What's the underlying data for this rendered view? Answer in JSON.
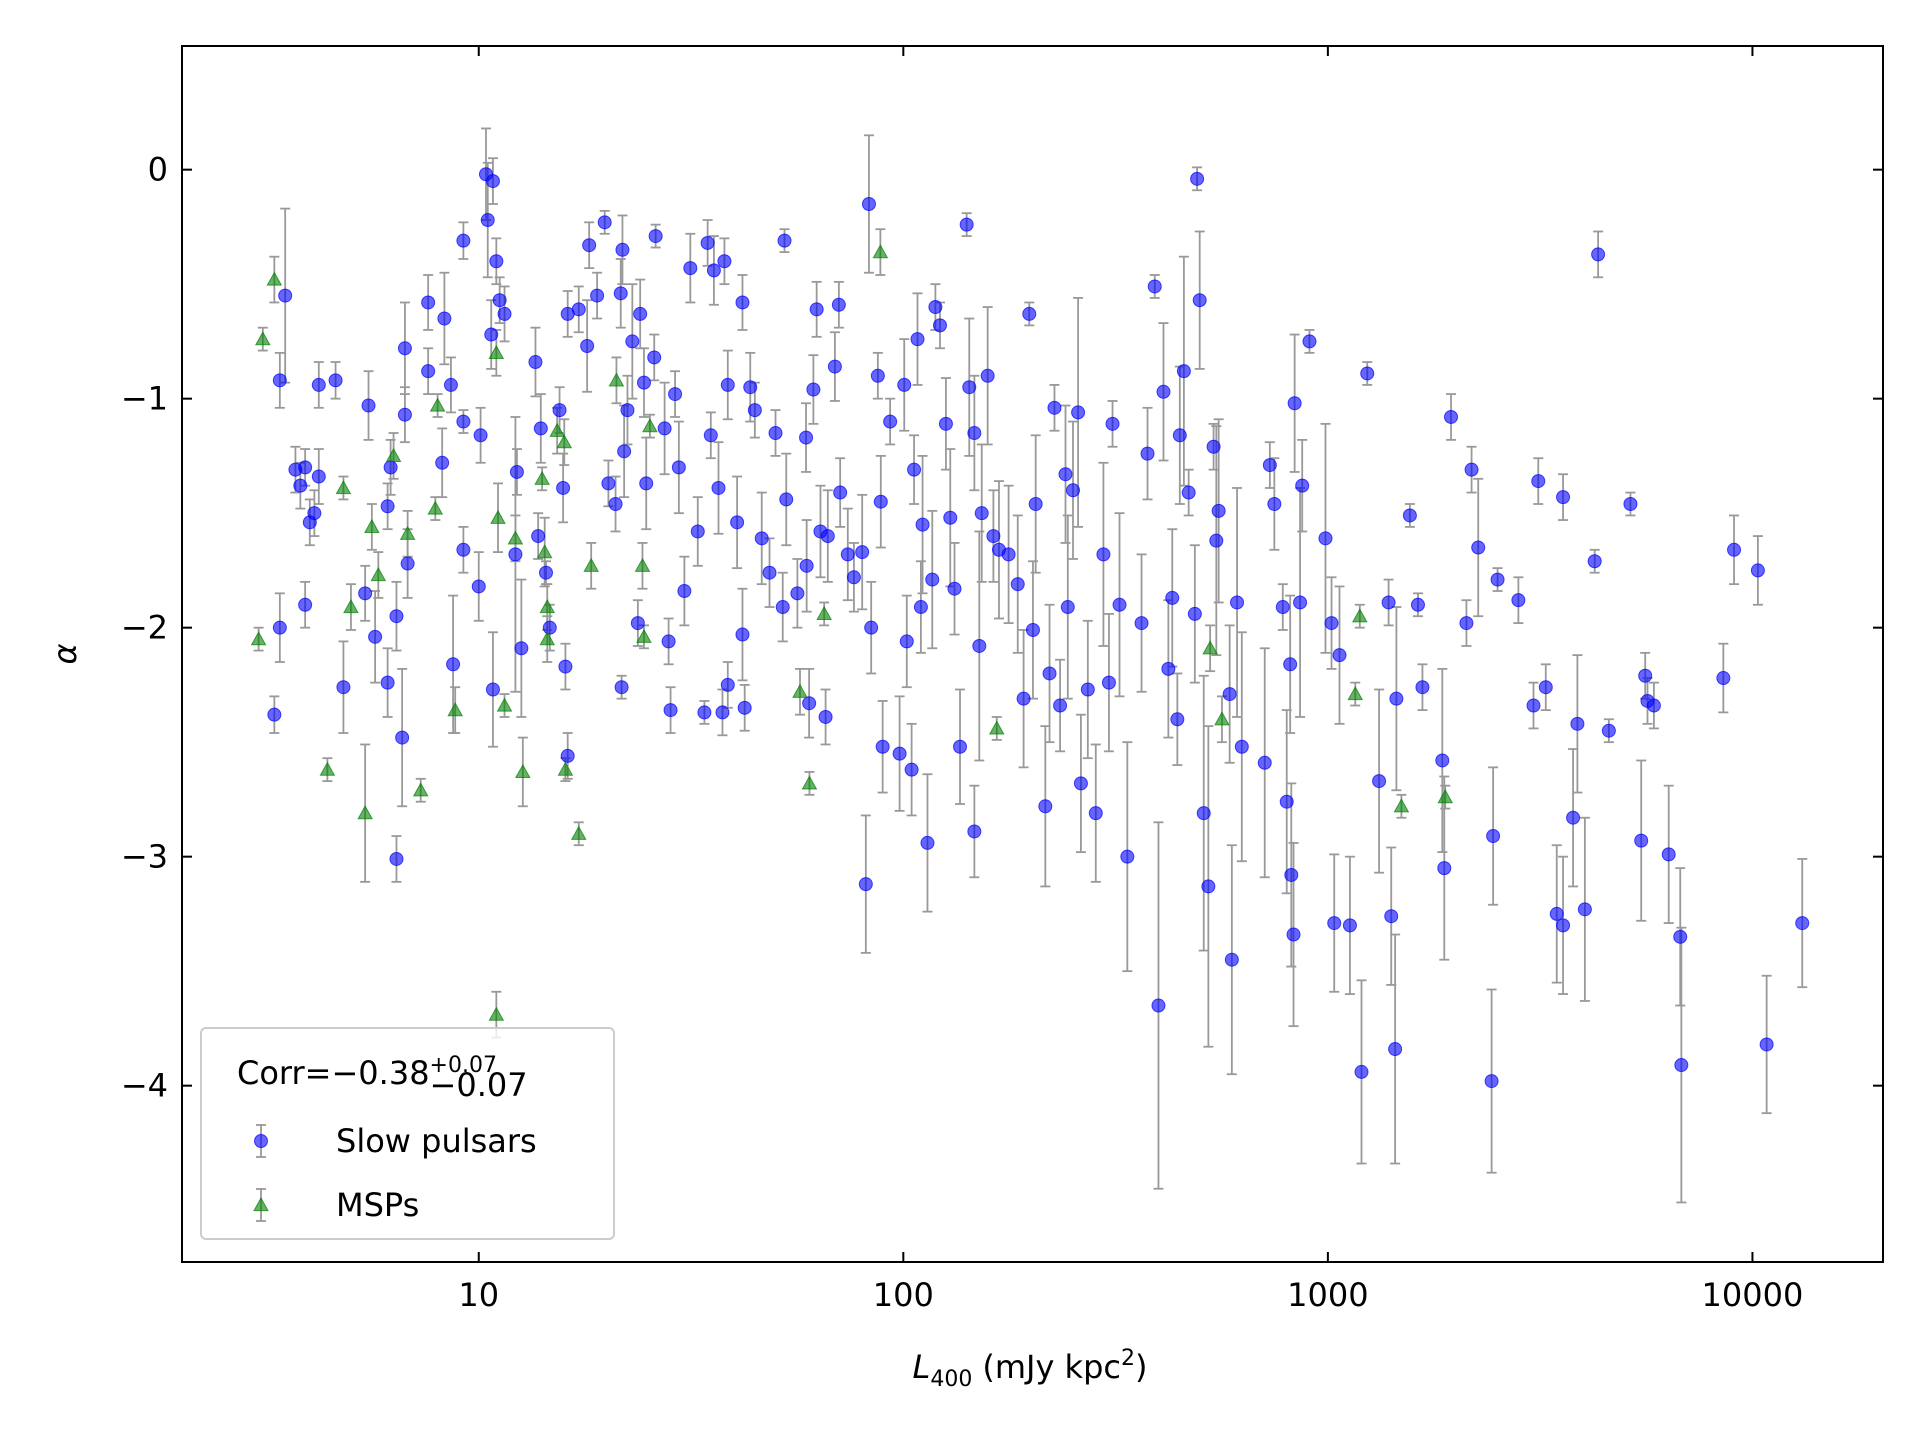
{
  "chart_data": {
    "type": "scatter",
    "xlabel": {
      "symbol": "L",
      "subscript": "400",
      "unit": "(mJy kpc",
      "superscript": "2",
      "close": ")"
    },
    "ylabel": "α",
    "xscale": "log",
    "xlim": [
      2.0,
      20300
    ],
    "ylim": [
      -4.77,
      0.54
    ],
    "xticks": [
      10,
      100,
      1000,
      10000
    ],
    "yticks": [
      {
        "value": 0,
        "label": "0"
      },
      {
        "value": -1,
        "label": "−1"
      },
      {
        "value": -2,
        "label": "−2"
      },
      {
        "value": -3,
        "label": "−3"
      },
      {
        "value": -4,
        "label": "−4"
      }
    ],
    "grid": false,
    "legend": "lower left",
    "legend_title": {
      "text": "Corr=−0.38",
      "upper": "+0.07",
      "lower": "−0.07"
    },
    "errorbar_color": "#999999",
    "series": [
      {
        "name": "Slow pulsars",
        "color": "#0000ff",
        "marker": "circle",
        "x": [
          3.3,
          3.4,
          3.5,
          3.4,
          3.7,
          3.8,
          3.9,
          4.0,
          4.1,
          4.2,
          4.2,
          3.9,
          4.6,
          4.8,
          5.4,
          5.5,
          5.7,
          6.1,
          6.1,
          6.2,
          6.4,
          6.4,
          6.6,
          6.7,
          6.7,
          6.8,
          7.6,
          7.6,
          8.2,
          8.3,
          8.6,
          8.7,
          9.2,
          9.2,
          9.2,
          10.0,
          10.1,
          10.4,
          10.5,
          10.8,
          10.7,
          11.0,
          11.2,
          11.5,
          10.8,
          12.2,
          12.3,
          12.6,
          13.6,
          14.0,
          13.8,
          14.4,
          14.7,
          15.5,
          15.8,
          16.0,
          16.2,
          16.2,
          17.2,
          18.0,
          18.2,
          19.0,
          19.8,
          20.2,
          21.0,
          21.6,
          21.7,
          21.8,
          22.0,
          22.4,
          23.0,
          23.7,
          24.0,
          24.5,
          24.8,
          25.9,
          26.1,
          27.4,
          28.0,
          28.3,
          29.0,
          29.6,
          30.5,
          31.5,
          32.8,
          34.0,
          34.6,
          35.2,
          35.8,
          36.7,
          37.5,
          37.9,
          38.6,
          38.6,
          40.6,
          41.8,
          41.8,
          42.3,
          43.6,
          44.7,
          46.4,
          48.4,
          50.0,
          52.0,
          52.5,
          53.0,
          56.3,
          59.0,
          59.2,
          60.0,
          61.4,
          62.5,
          63.8,
          65.6,
          66.4,
          69.0,
          70.5,
          71.0,
          74.0,
          76.5,
          80,
          81.6,
          83,
          84,
          87.1,
          88.5,
          89.4,
          93.1,
          98,
          100.5,
          101.9,
          104.6,
          106,
          108,
          110,
          111,
          114,
          117,
          119,
          122,
          126,
          129,
          132,
          136,
          141,
          143,
          147,
          147,
          151,
          153,
          158,
          163,
          168,
          177,
          186,
          192,
          198,
          202,
          205,
          216,
          221,
          227,
          234,
          241,
          244,
          251,
          258,
          262,
          272,
          284,
          296,
          305,
          311,
          323,
          337,
          364,
          376,
          391,
          399,
          410,
          421,
          430,
          442,
          448,
          458,
          470,
          486,
          492,
          499,
          510,
          523,
          538,
          546,
          553,
          587,
          594,
          611,
          627,
          710,
          730,
          748,
          783,
          800,
          815,
          820,
          830,
          835,
          860,
          870,
          905,
          987,
          1020,
          1035,
          1065,
          1127,
          1200,
          1238,
          1320,
          1390,
          1410,
          1440,
          1450,
          1560,
          1630,
          1670,
          1860,
          1880,
          1950,
          2120,
          2180,
          2260,
          2430,
          2450,
          2510,
          2810,
          3050,
          3130,
          3260,
          3460,
          3580,
          3580,
          3780,
          3870,
          4030,
          4250,
          4330,
          4590,
          5160,
          5470,
          5590,
          5660,
          5860,
          6350,
          6760,
          6800,
          8540,
          9050,
          10300,
          10800,
          13100
        ],
        "values": [
          -2.38,
          -0.92,
          -0.55,
          -2.0,
          -1.31,
          -1.38,
          -1.3,
          -1.54,
          -1.5,
          -1.34,
          -0.94,
          -1.9,
          -0.92,
          -2.26,
          -1.85,
          -1.03,
          -2.04,
          -2.24,
          -1.47,
          -1.3,
          -3.01,
          -1.95,
          -2.48,
          -1.07,
          -0.78,
          -1.72,
          -0.88,
          -0.58,
          -1.28,
          -0.65,
          -0.94,
          -2.16,
          -1.1,
          -0.31,
          -1.66,
          -1.82,
          -1.16,
          -0.02,
          -0.22,
          -0.05,
          -0.72,
          -0.4,
          -0.57,
          -0.63,
          -2.27,
          -1.68,
          -1.32,
          -2.09,
          -0.84,
          -1.13,
          -1.6,
          -1.76,
          -2.0,
          -1.05,
          -1.39,
          -2.17,
          -2.56,
          -0.63,
          -0.61,
          -0.77,
          -0.33,
          -0.55,
          -0.23,
          -1.37,
          -1.46,
          -0.54,
          -2.26,
          -0.35,
          -1.23,
          -1.05,
          -0.75,
          -1.98,
          -0.63,
          -0.93,
          -1.37,
          -0.82,
          -0.29,
          -1.13,
          -2.06,
          -2.36,
          -0.98,
          -1.3,
          -1.84,
          -0.43,
          -1.58,
          -2.37,
          -0.32,
          -1.16,
          -0.44,
          -1.39,
          -2.37,
          -0.4,
          -0.94,
          -2.25,
          -1.54,
          -0.58,
          -2.03,
          -2.35,
          -0.95,
          -1.05,
          -1.61,
          -1.76,
          -1.15,
          -1.91,
          -0.31,
          -1.44,
          -1.85,
          -1.17,
          -1.73,
          -2.33,
          -0.96,
          -0.61,
          -1.58,
          -2.39,
          -1.6,
          -0.86,
          -0.59,
          -1.41,
          -1.68,
          -1.78,
          -1.67,
          -3.12,
          -0.15,
          -2.0,
          -0.9,
          -1.45,
          -2.52,
          -1.1,
          -2.55,
          -0.94,
          -2.06,
          -2.62,
          -1.31,
          -0.74,
          -1.91,
          -1.55,
          -2.94,
          -1.79,
          -0.6,
          -0.68,
          -1.11,
          -1.52,
          -1.83,
          -2.52,
          -0.24,
          -0.95,
          -1.15,
          -2.89,
          -2.08,
          -1.5,
          -0.9,
          -1.6,
          -1.66,
          -1.68,
          -1.81,
          -2.31,
          -0.63,
          -2.01,
          -1.46,
          -2.78,
          -2.2,
          -1.04,
          -2.34,
          -1.33,
          -1.91,
          -1.4,
          -1.06,
          -2.68,
          -2.27,
          -2.81,
          -1.68,
          -2.24,
          -1.11,
          -1.9,
          -3.0,
          -1.98,
          -1.24,
          -0.51,
          -3.65,
          -0.97,
          -2.18,
          -1.87,
          -2.4,
          -1.16,
          -0.88,
          -1.41,
          -1.94,
          -0.04,
          -0.57,
          -2.81,
          -3.13,
          -1.21,
          -1.62,
          -1.49,
          -2.29,
          -3.45,
          -1.89,
          -2.52,
          -2.59,
          -1.29,
          -1.46,
          -1.91,
          -2.76,
          -2.16,
          -3.08,
          -3.34,
          -1.02,
          -1.89,
          -1.38,
          -0.75,
          -1.61,
          -1.98,
          -3.29,
          -2.12,
          -3.3,
          -3.94,
          -0.89,
          -2.67,
          -1.89,
          -3.26,
          -3.84,
          -2.31,
          -1.51,
          -1.9,
          -2.26,
          -2.58,
          -3.05,
          -1.08,
          -1.98,
          -1.31,
          -1.65,
          -3.98,
          -2.91,
          -1.79,
          -1.88,
          -2.34,
          -1.36,
          -2.26,
          -3.25,
          -1.43,
          -3.3,
          -2.83,
          -2.42,
          -3.23,
          -1.71,
          -0.37,
          -2.45,
          -1.46,
          -2.93,
          -2.21,
          -2.32,
          -2.34,
          -2.99,
          -3.35,
          -3.91,
          -2.22,
          -1.66,
          -1.75,
          -3.82,
          -3.29
        ],
        "errors": [
          0.08,
          0.12,
          0.38,
          0.15,
          0.1,
          0.1,
          0.08,
          0.1,
          0.1,
          0.12,
          0.1,
          0.1,
          0.08,
          0.2,
          0.12,
          0.15,
          0.2,
          0.15,
          0.1,
          0.12,
          0.1,
          0.15,
          0.3,
          0.12,
          0.2,
          0.15,
          0.1,
          0.12,
          0.15,
          0.2,
          0.12,
          0.3,
          0.05,
          0.08,
          0.1,
          0.15,
          0.12,
          0.2,
          0.25,
          0.1,
          0.15,
          0.1,
          0.1,
          0.12,
          0.25,
          0.6,
          0.1,
          0.3,
          0.15,
          0.15,
          0.1,
          0.05,
          0.1,
          0.1,
          0.15,
          0.1,
          0.1,
          0.1,
          0.1,
          0.2,
          0.1,
          0.1,
          0.05,
          0.1,
          0.12,
          0.15,
          0.05,
          0.15,
          0.2,
          0.15,
          0.25,
          0.1,
          0.15,
          0.15,
          0.2,
          0.1,
          0.05,
          0.2,
          0.1,
          0.1,
          0.1,
          0.2,
          0.15,
          0.15,
          0.15,
          0.05,
          0.1,
          0.1,
          0.15,
          0.2,
          0.1,
          0.1,
          0.15,
          0.1,
          0.2,
          0.12,
          0.2,
          0.1,
          0.15,
          0.12,
          0.2,
          0.15,
          0.1,
          0.15,
          0.05,
          0.2,
          0.15,
          0.15,
          0.2,
          0.15,
          0.15,
          0.12,
          0.2,
          0.12,
          0.2,
          0.15,
          0.1,
          0.15,
          0.2,
          0.15,
          0.25,
          0.3,
          0.3,
          0.2,
          0.1,
          0.2,
          0.2,
          0.1,
          0.25,
          0.2,
          0.2,
          0.2,
          0.15,
          0.2,
          0.2,
          0.3,
          0.3,
          0.3,
          0.1,
          0.1,
          0.2,
          0.3,
          0.2,
          0.25,
          0.05,
          0.3,
          0.25,
          0.2,
          0.5,
          0.3,
          0.3,
          0.2,
          0.3,
          0.3,
          0.3,
          0.3,
          0.05,
          0.3,
          0.3,
          0.35,
          0.3,
          0.1,
          0.2,
          0.3,
          0.4,
          0.3,
          0.5,
          0.3,
          0.3,
          0.3,
          0.4,
          0.3,
          0.1,
          0.4,
          0.5,
          0.3,
          0.2,
          0.05,
          0.8,
          0.3,
          0.3,
          0.3,
          0.2,
          0.3,
          0.5,
          0.1,
          0.3,
          0.05,
          0.3,
          0.6,
          0.7,
          0.1,
          0.5,
          0.4,
          0.3,
          0.5,
          0.5,
          0.5,
          0.5,
          0.1,
          0.2,
          0.1,
          0.4,
          0.3,
          0.4,
          0.4,
          0.3,
          0.5,
          0.2,
          0.05,
          0.5,
          0.2,
          0.3,
          0.3,
          0.3,
          0.4,
          0.05,
          0.4,
          0.1,
          0.3,
          0.5,
          0.4,
          0.05,
          0.05,
          0.1,
          0.4,
          0.4,
          0.1,
          0.1,
          0.1,
          0.3,
          0.4,
          0.3,
          0.05,
          0.1,
          0.1,
          0.1,
          0.1,
          0.3,
          0.1,
          0.3,
          0.3,
          0.3,
          0.4,
          0.05,
          0.1,
          0.05,
          0.05,
          0.35,
          0.1,
          0.1,
          0.1,
          0.3,
          0.3,
          0.6,
          0.15,
          0.15,
          0.15,
          0.3,
          0.28
        ]
      },
      {
        "name": "MSPs",
        "color": "#008000",
        "marker": "triangle",
        "x": [
          3.03,
          3.3,
          3.1,
          4.4,
          4.8,
          5.0,
          5.4,
          5.6,
          5.8,
          6.3,
          6.8,
          7.3,
          7.9,
          8.0,
          8.8,
          11.0,
          11.0,
          11.1,
          11.5,
          12.2,
          12.7,
          14.1,
          14.3,
          14.5,
          14.5,
          15.3,
          15.9,
          16.0,
          17.2,
          18.4,
          21.1,
          24.3,
          24.5,
          25.3,
          57.1,
          60.1,
          65.1,
          88.3,
          166,
          528,
          563,
          1189,
          1160,
          1490,
          1890
        ],
        "values": [
          -2.05,
          -0.48,
          -0.74,
          -2.62,
          -1.39,
          -1.91,
          -2.81,
          -1.56,
          -1.77,
          -1.25,
          -1.59,
          -2.71,
          -1.48,
          -1.03,
          -2.36,
          -3.69,
          -0.8,
          -1.52,
          -2.34,
          -1.61,
          -2.63,
          -1.35,
          -1.67,
          -1.91,
          -2.05,
          -1.14,
          -1.19,
          -2.62,
          -2.9,
          -1.73,
          -0.92,
          -1.73,
          -2.04,
          -1.12,
          -2.28,
          -2.68,
          -1.94,
          -0.36,
          -2.44,
          -2.09,
          -2.4,
          -1.95,
          -2.29,
          -2.78,
          -2.74
        ],
        "errors": [
          0.05,
          0.1,
          0.05,
          0.05,
          0.05,
          0.1,
          0.3,
          0.1,
          0.1,
          0.1,
          0.1,
          0.05,
          0.05,
          0.05,
          0.1,
          0.1,
          0.1,
          0.15,
          0.05,
          0.1,
          0.15,
          0.05,
          0.15,
          0.1,
          0.1,
          0.1,
          0.1,
          0.05,
          0.05,
          0.1,
          0.1,
          0.1,
          0.05,
          0.05,
          0.1,
          0.05,
          0.05,
          0.1,
          0.05,
          0.1,
          0.1,
          0.05,
          0.05,
          0.05,
          0.05
        ]
      }
    ]
  }
}
